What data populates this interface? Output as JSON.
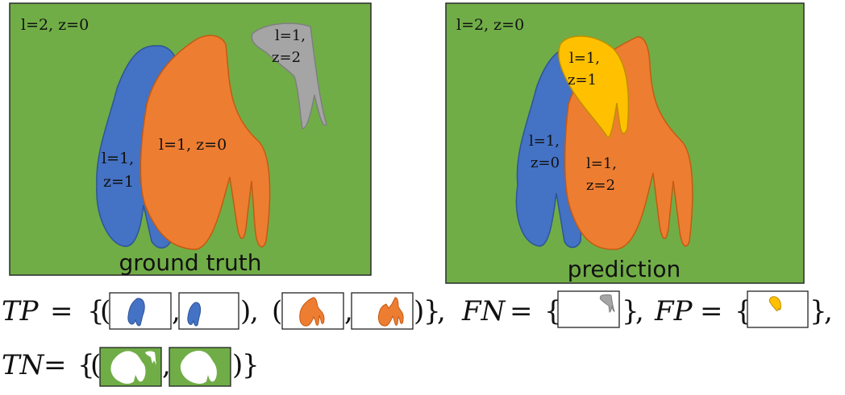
{
  "panels": {
    "ground_truth": {
      "caption": "ground truth",
      "background_label": "l=2, z=0",
      "regions": [
        {
          "name": "blue",
          "color": "#4472c4",
          "line1": "l=1,",
          "line2": "z=1"
        },
        {
          "name": "orange",
          "color": "#ed7d31",
          "line1": "l=1, z=0",
          "line2": ""
        },
        {
          "name": "gray",
          "color": "#a5a5a5",
          "line1": "l=1,",
          "line2": "z=2"
        }
      ]
    },
    "prediction": {
      "caption": "prediction",
      "background_label": "l=2, z=0",
      "regions": [
        {
          "name": "blue",
          "color": "#4472c4",
          "line1": "l=1,",
          "line2": "z=0"
        },
        {
          "name": "orange",
          "color": "#ed7d31",
          "line1": "l=1,",
          "line2": "z=2"
        },
        {
          "name": "yellow",
          "color": "#ffc000",
          "line1": "l=1,",
          "line2": "z=1"
        }
      ]
    }
  },
  "colors": {
    "background": "#70ad47",
    "border": "#2b2b2b"
  },
  "formula": {
    "tp_symbol": "TP",
    "fn_symbol": "FN",
    "fp_symbol": "FP",
    "tn_symbol": "TN",
    "equals": "=",
    "open_brace": "{",
    "close_brace": "}",
    "open_paren": "(",
    "close_paren": ")",
    "comma": ","
  }
}
